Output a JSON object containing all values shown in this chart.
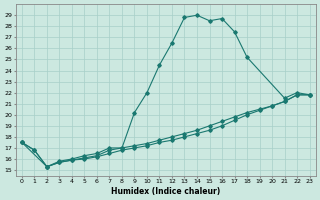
{
  "xlabel": "Humidex (Indice chaleur)",
  "bg_color": "#cce8e0",
  "grid_color": "#a8cfc8",
  "line_color": "#1a7870",
  "xlim": [
    -0.5,
    23.5
  ],
  "ylim": [
    14.5,
    30.0
  ],
  "xticks": [
    0,
    1,
    2,
    3,
    4,
    5,
    6,
    7,
    8,
    9,
    10,
    11,
    12,
    13,
    14,
    15,
    16,
    17,
    18,
    19,
    20,
    21,
    22,
    23
  ],
  "yticks": [
    15,
    16,
    17,
    18,
    19,
    20,
    21,
    22,
    23,
    24,
    25,
    26,
    27,
    28,
    29
  ],
  "series1_x": [
    0,
    1,
    2,
    3,
    4,
    5,
    6,
    7,
    8,
    9,
    10,
    11,
    12,
    13,
    14,
    15,
    16,
    17,
    18,
    21,
    22,
    23
  ],
  "series1_y": [
    17.5,
    16.8,
    15.3,
    15.8,
    16.0,
    16.3,
    16.5,
    17.0,
    17.0,
    20.2,
    22.0,
    24.5,
    26.5,
    28.8,
    29.0,
    28.5,
    28.7,
    27.5,
    25.2,
    21.5,
    22.0,
    21.8
  ],
  "series2_x": [
    0,
    1,
    2,
    3,
    4,
    5,
    6,
    7,
    8,
    9,
    10,
    11,
    12,
    13,
    14,
    15,
    16,
    17,
    18,
    19,
    20,
    21,
    22,
    23
  ],
  "series2_y": [
    17.5,
    16.8,
    15.3,
    15.7,
    15.9,
    16.0,
    16.2,
    16.5,
    16.8,
    17.0,
    17.2,
    17.5,
    17.7,
    18.0,
    18.3,
    18.6,
    19.0,
    19.5,
    20.0,
    20.4,
    20.8,
    21.2,
    21.8,
    21.8
  ],
  "series3_x": [
    0,
    2,
    3,
    4,
    5,
    6,
    7,
    8,
    9,
    10,
    11,
    12,
    13,
    14,
    15,
    16,
    17,
    18,
    19,
    20,
    21,
    22,
    23
  ],
  "series3_y": [
    17.5,
    15.3,
    15.7,
    15.9,
    16.1,
    16.3,
    16.8,
    17.0,
    17.2,
    17.4,
    17.7,
    18.0,
    18.3,
    18.6,
    19.0,
    19.4,
    19.8,
    20.2,
    20.5,
    20.8,
    21.2,
    21.8,
    21.8
  ]
}
